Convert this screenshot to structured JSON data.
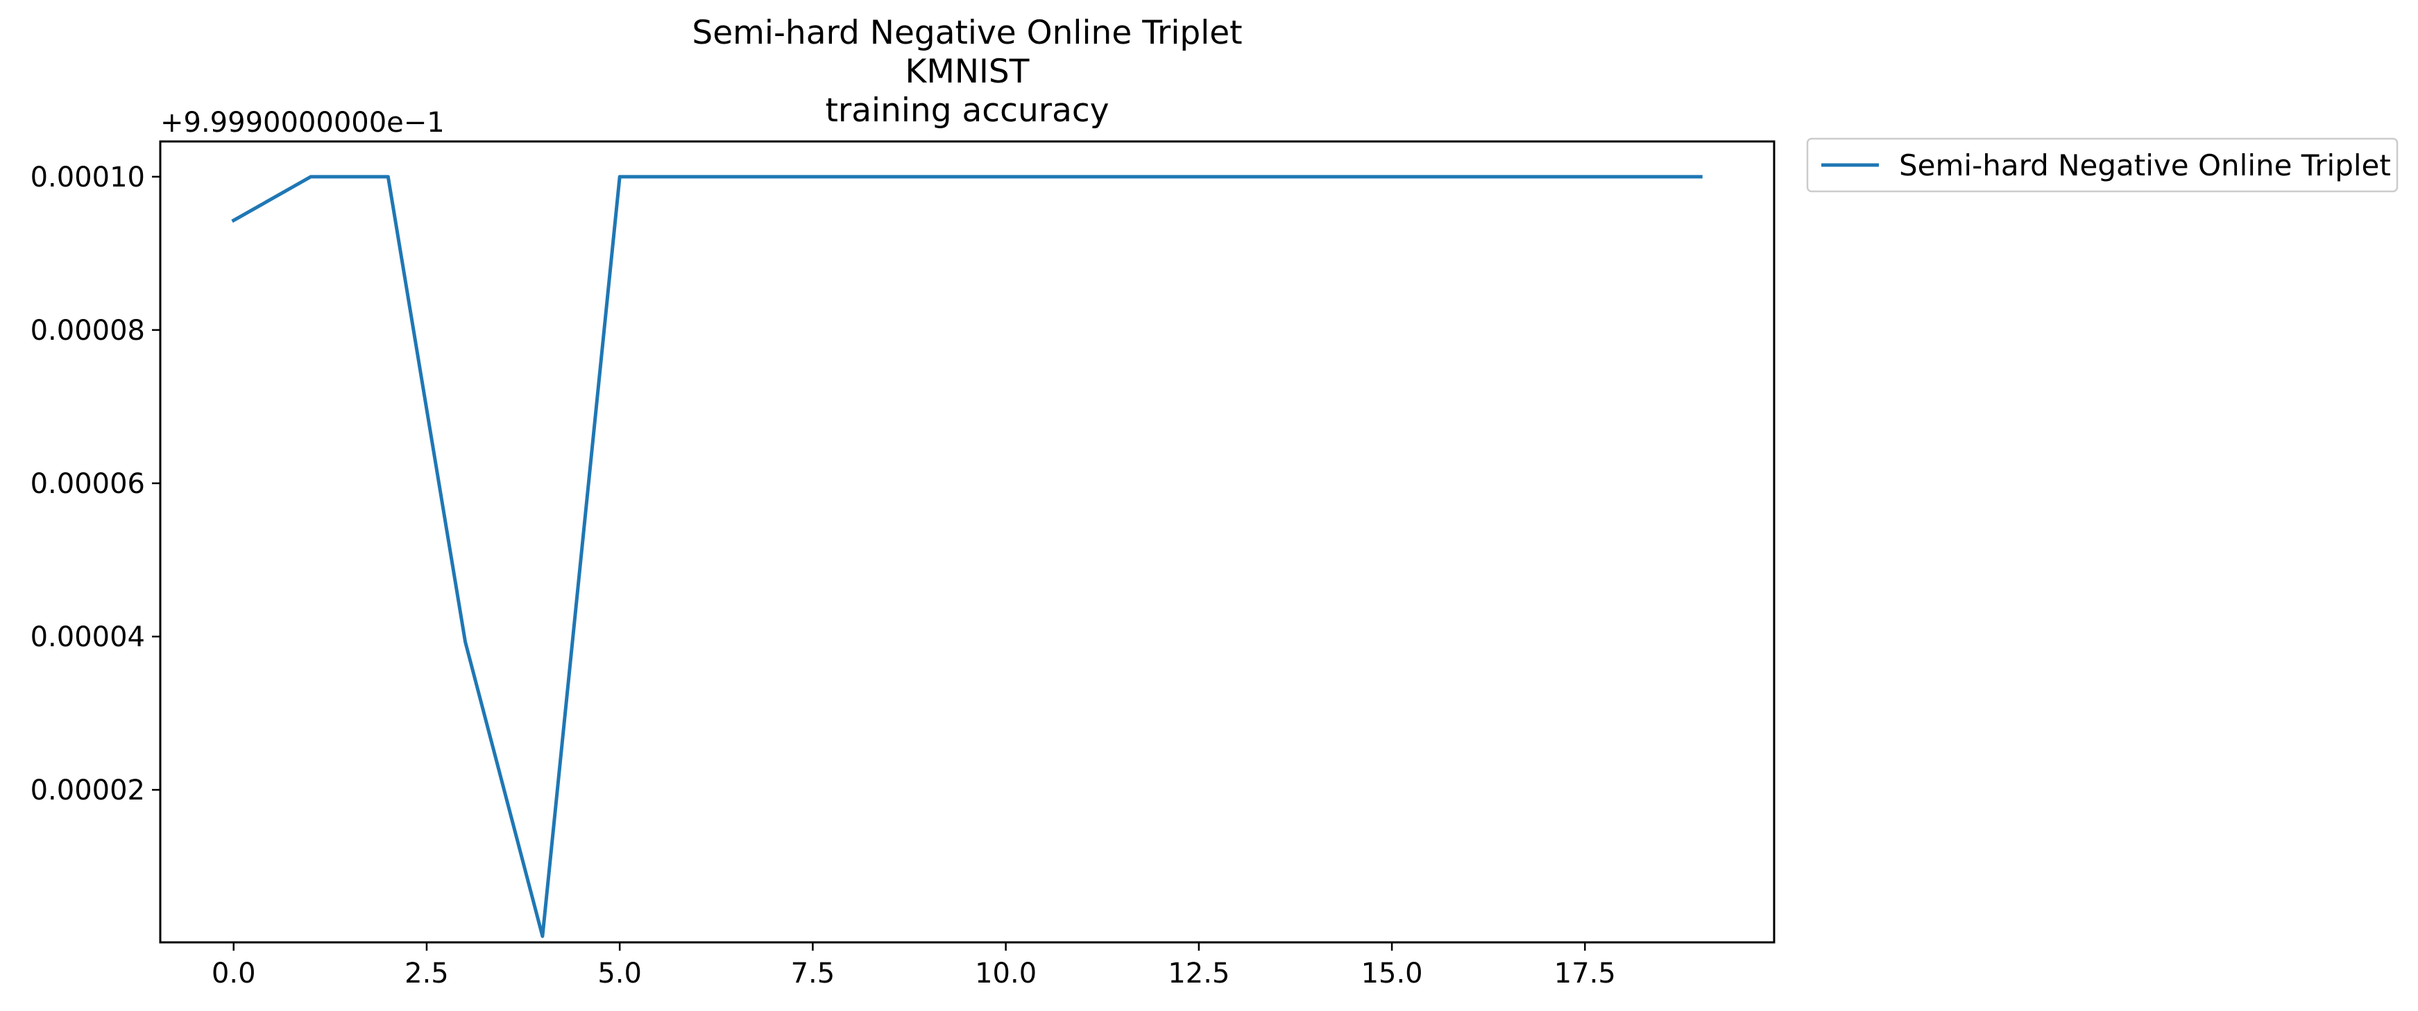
{
  "chart_data": {
    "type": "line",
    "title_lines": [
      "Semi-hard Negative Online Triplet",
      "KMNIST",
      "training accuracy"
    ],
    "xlabel": "",
    "ylabel": "",
    "y_offset_label": "+9.9990000000e−1",
    "xlim": [
      -0.95,
      19.95
    ],
    "ylim": [
      1e-07,
      0.0001046
    ],
    "x_ticks": [
      0.0,
      2.5,
      5.0,
      7.5,
      10.0,
      12.5,
      15.0,
      17.5
    ],
    "x_tick_labels": [
      "0.0",
      "2.5",
      "5.0",
      "7.5",
      "10.0",
      "12.5",
      "15.0",
      "17.5"
    ],
    "y_ticks": [
      2e-05,
      4e-05,
      6e-05,
      8e-05,
      0.0001
    ],
    "y_tick_labels": [
      "0.00002",
      "0.00004",
      "0.00006",
      "0.00008",
      "0.00010"
    ],
    "grid": false,
    "legend_position": "outside top-right",
    "series": [
      {
        "name": "Semi-hard Negative Online Triplet",
        "color": "#1f77b4",
        "x": [
          0,
          1,
          2,
          3,
          4,
          5,
          6,
          7,
          8,
          9,
          10,
          11,
          12,
          13,
          14,
          15,
          16,
          17,
          18,
          19
        ],
        "values": [
          9.43e-05,
          0.0001,
          0.0001,
          3.93e-05,
          9e-07,
          0.0001,
          0.0001,
          0.0001,
          0.0001,
          0.0001,
          0.0001,
          0.0001,
          0.0001,
          0.0001,
          0.0001,
          0.0001,
          0.0001,
          0.0001,
          0.0001,
          0.0001
        ]
      }
    ]
  }
}
